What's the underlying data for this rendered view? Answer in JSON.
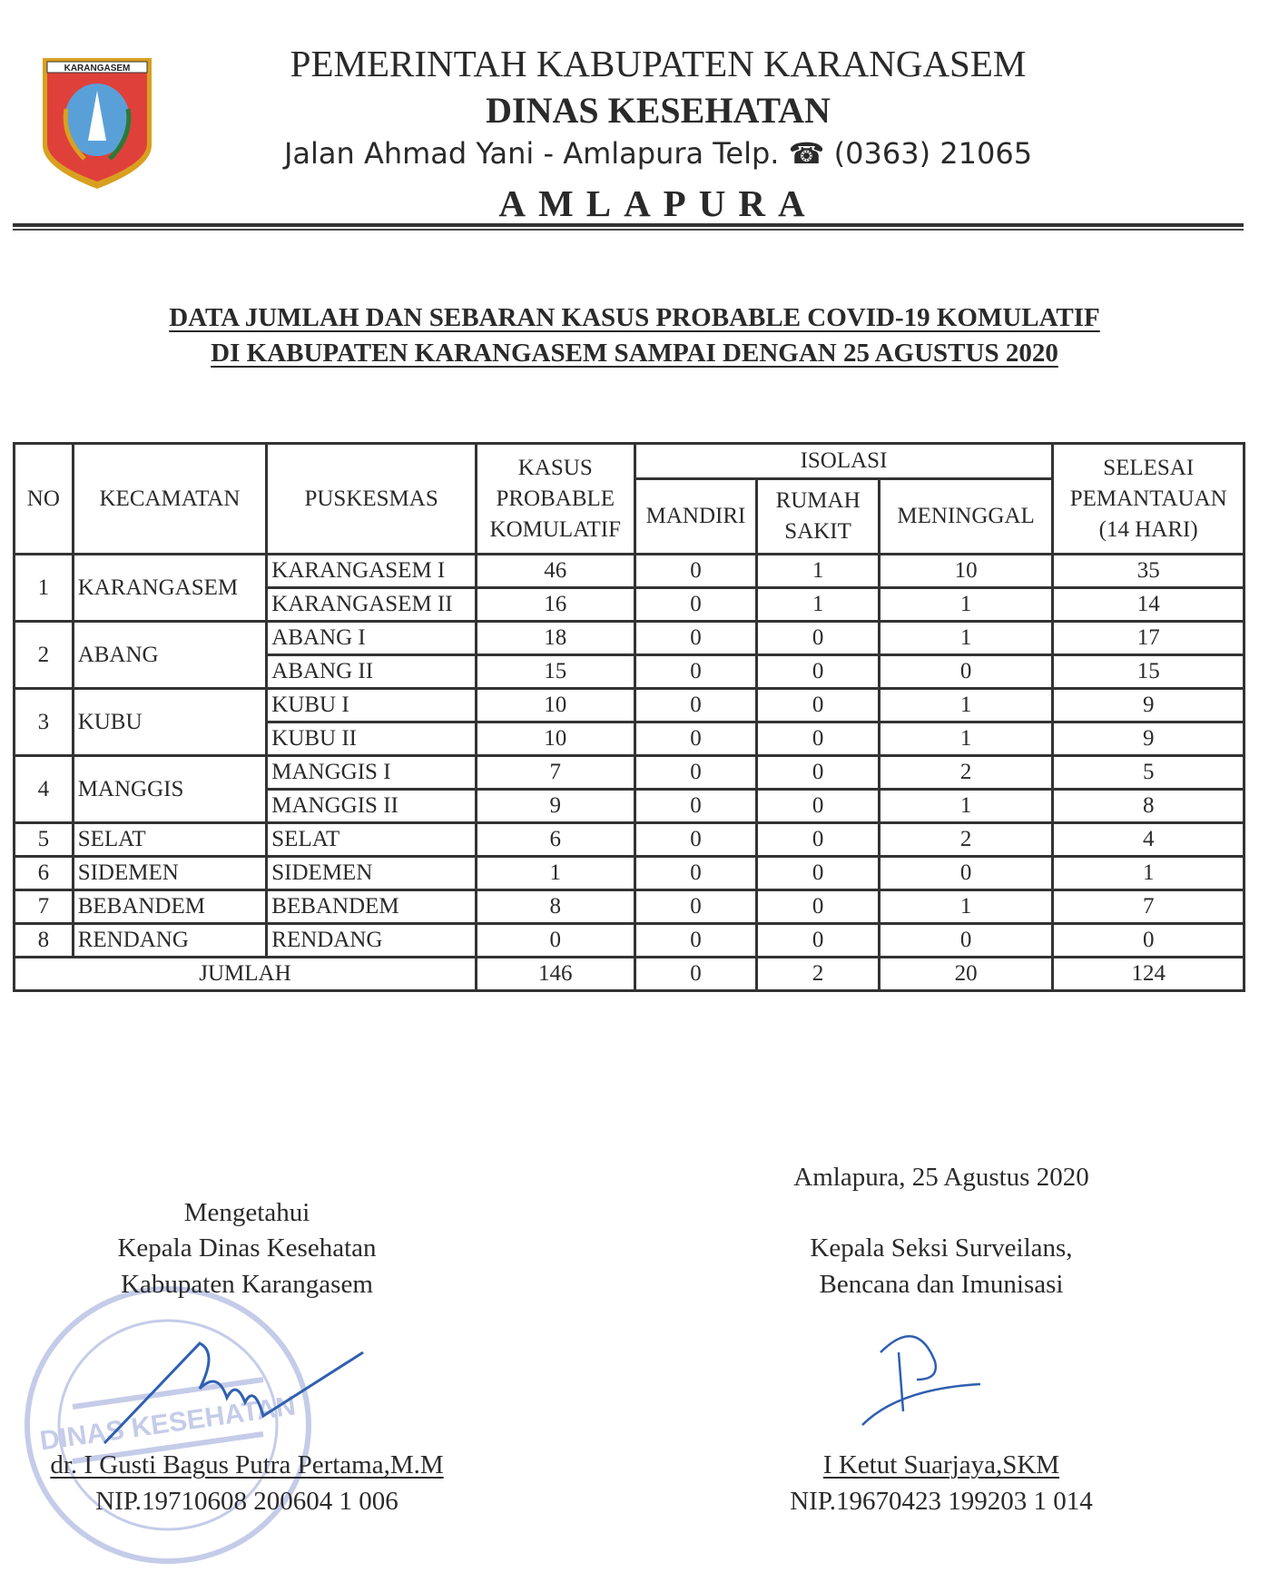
{
  "letterhead": {
    "logo_text": "KARANGASEM",
    "line1": "PEMERINTAH KABUPATEN KARANGASEM",
    "line2": "DINAS KESEHATAN",
    "line3": "Jalan Ahmad Yani  - Amlapura Telp. ☎ (0363) 21065",
    "line4": "AMLAPURA"
  },
  "title": {
    "line1": "DATA JUMLAH DAN SEBARAN KASUS PROBABLE COVID-19 KOMULATIF",
    "line2": "DI KABUPATEN KARANGASEM SAMPAI DENGAN 25 AGUSTUS 2020"
  },
  "table": {
    "headers": {
      "no": "NO",
      "kecamatan": "KECAMATAN",
      "puskesmas": "PUSKESMAS",
      "kasus": "KASUS PROBABLE KOMULATIF",
      "isolasi": "ISOLASI",
      "mandiri": "MANDIRI",
      "rumah_sakit": "RUMAH SAKIT",
      "meninggal": "MENINGGAL",
      "selesai": "SELESAI PEMANTAUAN (14 HARI)"
    },
    "groups": [
      {
        "no": "1",
        "kecamatan": "KARANGASEM",
        "rows": [
          {
            "puskesmas": "KARANGASEM I",
            "kasus": "46",
            "mandiri": "0",
            "rs": "1",
            "meninggal": "10",
            "selesai": "35"
          },
          {
            "puskesmas": "KARANGASEM II",
            "kasus": "16",
            "mandiri": "0",
            "rs": "1",
            "meninggal": "1",
            "selesai": "14"
          }
        ]
      },
      {
        "no": "2",
        "kecamatan": "ABANG",
        "rows": [
          {
            "puskesmas": "ABANG I",
            "kasus": "18",
            "mandiri": "0",
            "rs": "0",
            "meninggal": "1",
            "selesai": "17"
          },
          {
            "puskesmas": "ABANG II",
            "kasus": "15",
            "mandiri": "0",
            "rs": "0",
            "meninggal": "0",
            "selesai": "15"
          }
        ]
      },
      {
        "no": "3",
        "kecamatan": "KUBU",
        "rows": [
          {
            "puskesmas": "KUBU I",
            "kasus": "10",
            "mandiri": "0",
            "rs": "0",
            "meninggal": "1",
            "selesai": "9"
          },
          {
            "puskesmas": "KUBU II",
            "kasus": "10",
            "mandiri": "0",
            "rs": "0",
            "meninggal": "1",
            "selesai": "9"
          }
        ]
      },
      {
        "no": "4",
        "kecamatan": "MANGGIS",
        "rows": [
          {
            "puskesmas": "MANGGIS I",
            "kasus": "7",
            "mandiri": "0",
            "rs": "0",
            "meninggal": "2",
            "selesai": "5"
          },
          {
            "puskesmas": "MANGGIS II",
            "kasus": "9",
            "mandiri": "0",
            "rs": "0",
            "meninggal": "1",
            "selesai": "8"
          }
        ]
      },
      {
        "no": "5",
        "kecamatan": "SELAT",
        "rows": [
          {
            "puskesmas": "SELAT",
            "kasus": "6",
            "mandiri": "0",
            "rs": "0",
            "meninggal": "2",
            "selesai": "4"
          }
        ]
      },
      {
        "no": "6",
        "kecamatan": "SIDEMEN",
        "rows": [
          {
            "puskesmas": "SIDEMEN",
            "kasus": "1",
            "mandiri": "0",
            "rs": "0",
            "meninggal": "0",
            "selesai": "1"
          }
        ]
      },
      {
        "no": "7",
        "kecamatan": "BEBANDEM",
        "rows": [
          {
            "puskesmas": "BEBANDEM",
            "kasus": "8",
            "mandiri": "0",
            "rs": "0",
            "meninggal": "1",
            "selesai": "7"
          }
        ]
      },
      {
        "no": "8",
        "kecamatan": "RENDANG",
        "rows": [
          {
            "puskesmas": "RENDANG",
            "kasus": "0",
            "mandiri": "0",
            "rs": "0",
            "meninggal": "0",
            "selesai": "0"
          }
        ]
      }
    ],
    "total": {
      "label": "JUMLAH",
      "kasus": "146",
      "mandiri": "0",
      "rs": "2",
      "meninggal": "20",
      "selesai": "124"
    }
  },
  "signatures": {
    "place_date": "Amlapura, 25 Agustus 2020",
    "left": {
      "line1": "Mengetahui",
      "line2": "Kepala Dinas Kesehatan",
      "line3": "Kabupaten Karangasem",
      "name": "dr. I Gusti Bagus Putra Pertama,M.M",
      "nip": "NIP.19710608 200604 1 006",
      "stamp_text": "PEMERINTAH KABUPATEN KARANGASEM DINAS KESEHATAN"
    },
    "right": {
      "line1": "Kepala Seksi Surveilans,",
      "line2": "Bencana dan Imunisasi",
      "name": "I Ketut Suarjaya,SKM",
      "nip": "NIP.19670423 199203 1 014"
    }
  },
  "colors": {
    "ink": "#2a2a2a",
    "stamp": "#7f8fd0",
    "signature": "#2f5fb0",
    "logo_red": "#e0403a",
    "logo_gold": "#d8a020"
  }
}
